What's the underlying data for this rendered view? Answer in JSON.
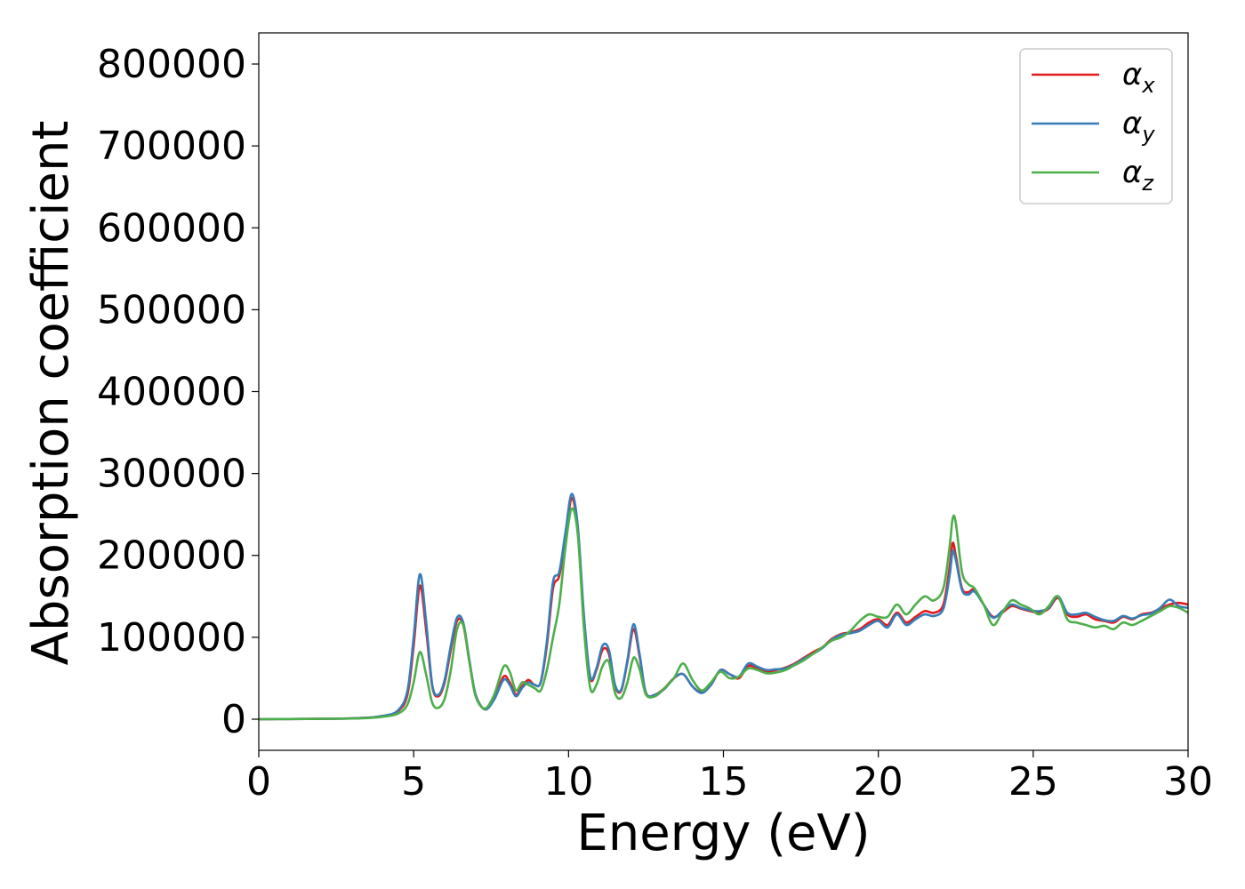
{
  "chart_data": {
    "type": "line",
    "title": "",
    "xlabel": "Energy (eV)",
    "ylabel": "Absorption coefficient",
    "xlim": [
      0,
      30
    ],
    "ylim": [
      -38000,
      838000
    ],
    "xticks": [
      0,
      5,
      10,
      15,
      20,
      25,
      30
    ],
    "yticks": [
      0,
      100000,
      200000,
      300000,
      400000,
      500000,
      600000,
      700000,
      800000
    ],
    "grid": false,
    "legend_position": "top-right",
    "series": [
      {
        "name": "α",
        "subscript": "x",
        "color": "#e41a1c",
        "x": [
          0,
          3,
          4,
          4.5,
          4.8,
          5.0,
          5.2,
          5.4,
          5.6,
          5.8,
          6.0,
          6.2,
          6.4,
          6.6,
          6.8,
          7.0,
          7.3,
          7.6,
          7.9,
          8.1,
          8.3,
          8.5,
          8.7,
          8.9,
          9.1,
          9.3,
          9.5,
          9.7,
          9.9,
          10.1,
          10.3,
          10.5,
          10.7,
          10.9,
          11.1,
          11.3,
          11.5,
          11.7,
          11.9,
          12.1,
          12.3,
          12.5,
          12.8,
          13.1,
          13.4,
          13.7,
          14.0,
          14.3,
          14.6,
          14.9,
          15.2,
          15.5,
          15.8,
          16.1,
          16.4,
          16.7,
          17.0,
          17.3,
          17.6,
          17.9,
          18.2,
          18.5,
          18.8,
          19.1,
          19.4,
          19.7,
          20.0,
          20.3,
          20.6,
          20.9,
          21.2,
          21.5,
          21.8,
          22.1,
          22.3,
          22.4,
          22.5,
          22.7,
          22.9,
          23.1,
          23.4,
          23.7,
          24.0,
          24.3,
          24.6,
          24.9,
          25.2,
          25.5,
          25.8,
          26.1,
          26.4,
          26.7,
          27.0,
          27.3,
          27.6,
          27.9,
          28.2,
          28.5,
          28.8,
          29.1,
          29.4,
          29.7,
          30.0
        ],
        "y": [
          0,
          1000,
          4000,
          10000,
          30000,
          90000,
          163000,
          110000,
          40000,
          28000,
          45000,
          85000,
          120000,
          115000,
          70000,
          30000,
          12000,
          25000,
          52000,
          45000,
          30000,
          40000,
          48000,
          42000,
          45000,
          90000,
          160000,
          175000,
          220000,
          270000,
          230000,
          120000,
          50000,
          60000,
          85000,
          80000,
          40000,
          35000,
          70000,
          110000,
          75000,
          32000,
          30000,
          38000,
          50000,
          55000,
          40000,
          33000,
          42000,
          60000,
          55000,
          50000,
          65000,
          62000,
          58000,
          60000,
          63000,
          68000,
          75000,
          82000,
          88000,
          98000,
          104000,
          106000,
          110000,
          118000,
          122000,
          115000,
          130000,
          118000,
          125000,
          132000,
          130000,
          140000,
          185000,
          215000,
          200000,
          160000,
          155000,
          158000,
          140000,
          125000,
          130000,
          138000,
          135000,
          132000,
          130000,
          135000,
          148000,
          128000,
          125000,
          128000,
          122000,
          120000,
          118000,
          125000,
          122000,
          128000,
          130000,
          135000,
          140000,
          142000,
          140000
        ]
      },
      {
        "name": "α",
        "subscript": "y",
        "color": "#377eb8",
        "x": [
          0,
          3,
          4,
          4.5,
          4.8,
          5.0,
          5.2,
          5.4,
          5.6,
          5.8,
          6.0,
          6.2,
          6.4,
          6.6,
          6.8,
          7.0,
          7.3,
          7.6,
          7.9,
          8.1,
          8.3,
          8.5,
          8.7,
          8.9,
          9.1,
          9.3,
          9.5,
          9.7,
          9.9,
          10.1,
          10.3,
          10.5,
          10.7,
          10.9,
          11.1,
          11.3,
          11.5,
          11.7,
          11.9,
          12.1,
          12.3,
          12.5,
          12.8,
          13.1,
          13.4,
          13.7,
          14.0,
          14.3,
          14.6,
          14.9,
          15.2,
          15.5,
          15.8,
          16.1,
          16.4,
          16.7,
          17.0,
          17.3,
          17.6,
          17.9,
          18.2,
          18.5,
          18.8,
          19.1,
          19.4,
          19.7,
          20.0,
          20.3,
          20.6,
          20.9,
          21.2,
          21.5,
          21.8,
          22.1,
          22.3,
          22.4,
          22.5,
          22.7,
          22.9,
          23.1,
          23.4,
          23.7,
          24.0,
          24.3,
          24.6,
          24.9,
          25.2,
          25.5,
          25.8,
          26.1,
          26.4,
          26.7,
          27.0,
          27.3,
          27.6,
          27.9,
          28.2,
          28.5,
          28.8,
          29.1,
          29.4,
          29.7,
          30.0
        ],
        "y": [
          0,
          1000,
          4000,
          11000,
          35000,
          100000,
          177000,
          120000,
          42000,
          30000,
          48000,
          90000,
          124000,
          118000,
          72000,
          30000,
          12000,
          24000,
          48000,
          42000,
          28000,
          38000,
          45000,
          42000,
          45000,
          95000,
          168000,
          180000,
          228000,
          275000,
          235000,
          125000,
          52000,
          62000,
          90000,
          85000,
          42000,
          36000,
          72000,
          116000,
          78000,
          32000,
          30000,
          37000,
          50000,
          55000,
          40000,
          32000,
          42000,
          60000,
          55000,
          52000,
          68000,
          64000,
          60000,
          61000,
          62000,
          67000,
          74000,
          80000,
          87000,
          97000,
          103000,
          105000,
          108000,
          115000,
          120000,
          112000,
          128000,
          115000,
          122000,
          128000,
          126000,
          135000,
          175000,
          205000,
          195000,
          158000,
          152000,
          156000,
          140000,
          124000,
          132000,
          140000,
          136000,
          133000,
          132000,
          136000,
          150000,
          130000,
          128000,
          130000,
          125000,
          121000,
          120000,
          126000,
          123000,
          127000,
          129000,
          136000,
          146000,
          138000,
          136000
        ]
      },
      {
        "name": "α",
        "subscript": "z",
        "color": "#4daf4a",
        "x": [
          0,
          3,
          4,
          4.5,
          4.8,
          5.0,
          5.2,
          5.4,
          5.6,
          5.8,
          6.0,
          6.2,
          6.4,
          6.6,
          6.8,
          7.0,
          7.3,
          7.6,
          7.9,
          8.1,
          8.3,
          8.5,
          8.7,
          8.9,
          9.1,
          9.3,
          9.5,
          9.7,
          9.9,
          10.1,
          10.3,
          10.5,
          10.7,
          10.9,
          11.1,
          11.3,
          11.5,
          11.7,
          11.9,
          12.1,
          12.3,
          12.5,
          12.8,
          13.1,
          13.4,
          13.7,
          14.0,
          14.3,
          14.6,
          14.9,
          15.2,
          15.5,
          15.8,
          16.1,
          16.4,
          16.7,
          17.0,
          17.3,
          17.6,
          17.9,
          18.2,
          18.5,
          18.8,
          19.1,
          19.4,
          19.7,
          20.0,
          20.3,
          20.6,
          20.9,
          21.2,
          21.5,
          21.8,
          22.1,
          22.3,
          22.4,
          22.5,
          22.7,
          22.9,
          23.1,
          23.4,
          23.7,
          24.0,
          24.3,
          24.6,
          24.9,
          25.2,
          25.5,
          25.8,
          26.1,
          26.4,
          26.7,
          27.0,
          27.3,
          27.6,
          27.9,
          28.2,
          28.5,
          28.8,
          29.1,
          29.4,
          29.7,
          30.0
        ],
        "y": [
          0,
          800,
          3000,
          7000,
          18000,
          45000,
          82000,
          55000,
          20000,
          14000,
          25000,
          60000,
          110000,
          115000,
          70000,
          28000,
          13000,
          30000,
          64000,
          58000,
          35000,
          45000,
          42000,
          38000,
          35000,
          60000,
          100000,
          140000,
          210000,
          257000,
          225000,
          110000,
          38000,
          42000,
          65000,
          70000,
          32000,
          26000,
          45000,
          75000,
          60000,
          30000,
          28000,
          38000,
          50000,
          68000,
          48000,
          35000,
          45000,
          58000,
          50000,
          52000,
          62000,
          60000,
          56000,
          57000,
          60000,
          66000,
          72000,
          80000,
          88000,
          96000,
          100000,
          108000,
          120000,
          128000,
          125000,
          125000,
          140000,
          128000,
          140000,
          150000,
          145000,
          160000,
          210000,
          245000,
          240000,
          180000,
          165000,
          160000,
          140000,
          115000,
          130000,
          145000,
          140000,
          135000,
          128000,
          138000,
          150000,
          122000,
          118000,
          115000,
          112000,
          114000,
          110000,
          118000,
          115000,
          120000,
          126000,
          132000,
          138000,
          136000,
          130000
        ]
      }
    ]
  }
}
